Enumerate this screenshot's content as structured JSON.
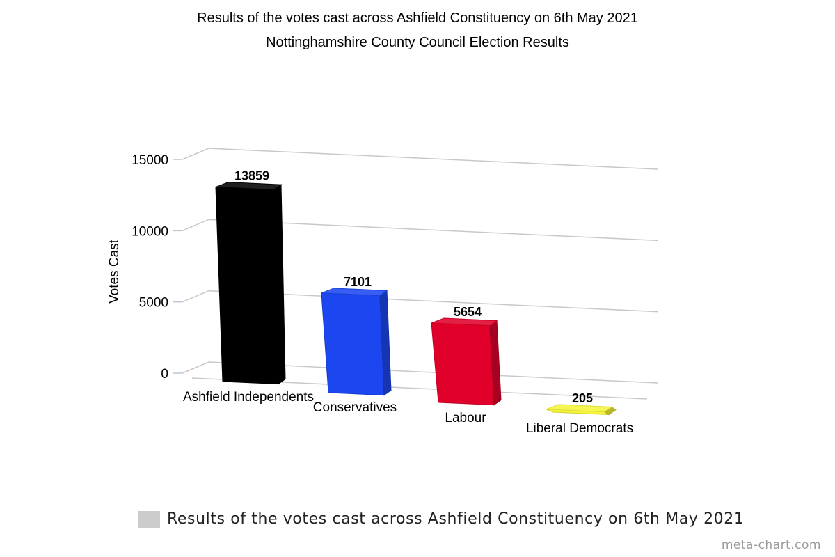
{
  "chart_data": {
    "type": "bar",
    "title": "Results of the votes cast across Ashfield Constituency on 6th May 2021",
    "subtitle": "Nottinghamshire County Council Election Results",
    "ylabel": "Votes Cast",
    "xlabel": "",
    "ylim": [
      0,
      15000
    ],
    "yticks": [
      0,
      5000,
      10000,
      15000
    ],
    "ytick_labels": [
      "0",
      "5000",
      "10000",
      "15000"
    ],
    "grid": true,
    "legend_position": "bottom",
    "categories": [
      "Ashfield Independents",
      "Conservatives",
      "Labour",
      "Liberal Democrats"
    ],
    "series": [
      {
        "name": "Results of the votes cast across Ashfield Constituency on 6th May 2021",
        "values": [
          13859,
          7101,
          5654,
          205
        ],
        "value_labels": [
          "13859",
          "7101",
          "5654",
          "205"
        ],
        "colors": [
          "#000000",
          "#1c47f0",
          "#e0002a",
          "#f5f53a"
        ]
      }
    ],
    "legend_color": "#cccccc"
  },
  "watermark": "meta-chart.com"
}
